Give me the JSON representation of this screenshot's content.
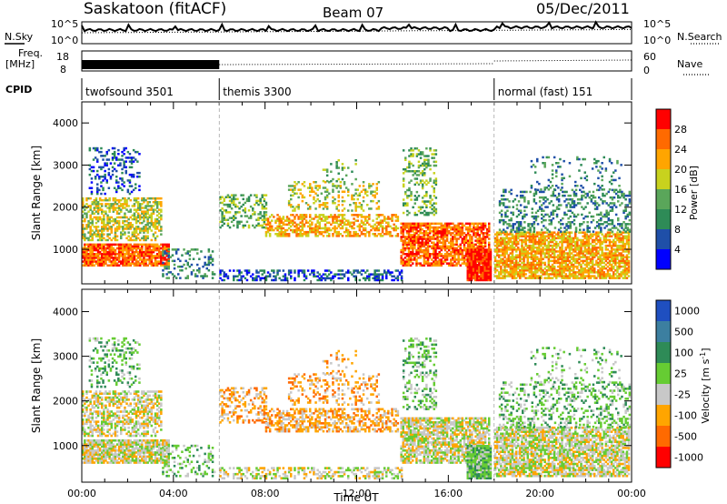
{
  "header": {
    "station": "Saskatoon (fitACF)",
    "beam": "Beam 07",
    "date": "05/Dec/2011"
  },
  "noise_panel": {
    "left_label": "N.Sky",
    "right_label": "N.Search",
    "left_top": "10^5",
    "left_bottom": "10^0",
    "right_top": "10^5",
    "right_bottom": "10^0"
  },
  "freq_panel": {
    "left_label_1": "Freq.",
    "left_label_2": "[MHz]",
    "right_label": "Nave",
    "left_top": "18",
    "left_bottom": "8",
    "right_top": "60",
    "right_bottom": "0"
  },
  "cpid": {
    "label": "CPID",
    "modes": [
      {
        "name": "twofsound 3501",
        "start_hour": 0
      },
      {
        "name": "themis 3300",
        "start_hour": 6
      },
      {
        "name": "normal (fast) 151",
        "start_hour": 18
      }
    ]
  },
  "colors": {
    "power_scale": [
      "#0000ff",
      "#1f4fa8",
      "#2e8b57",
      "#5aa65a",
      "#c8d21e",
      "#ffa500",
      "#ff6a00",
      "#ff0000"
    ],
    "velocity_scale": [
      "#1f4fc0",
      "#3c7fa0",
      "#2e8b57",
      "#66cc33",
      "#c8c8c8",
      "#ffa500",
      "#ff6a00",
      "#ff0000"
    ]
  },
  "chart_data": [
    {
      "type": "heatmap",
      "title": "",
      "ylabel": "Slant Range [km]",
      "xlim": [
        0,
        24
      ],
      "ylim": [
        180,
        4500
      ],
      "yticks": [
        1000,
        2000,
        3000,
        4000
      ],
      "colorbar": {
        "label": "Power [dB]",
        "ticks": [
          "28",
          "24",
          "20",
          "16",
          "12",
          "8",
          "4"
        ]
      }
    },
    {
      "type": "heatmap",
      "title": "",
      "ylabel": "Slant Range [km]",
      "xlabel": "Time UT",
      "xlim": [
        0,
        24
      ],
      "ylim": [
        180,
        4500
      ],
      "yticks": [
        1000,
        2000,
        3000,
        4000
      ],
      "xticks": [
        "00:00",
        "04:00",
        "08:00",
        "12:00",
        "16:00",
        "20:00",
        "00:00"
      ],
      "colorbar": {
        "label": "Velocity [m s^-1]",
        "ticks": [
          "1000",
          "500",
          "100",
          "25",
          "-25",
          "-100",
          "-500",
          "-1000"
        ]
      }
    }
  ]
}
